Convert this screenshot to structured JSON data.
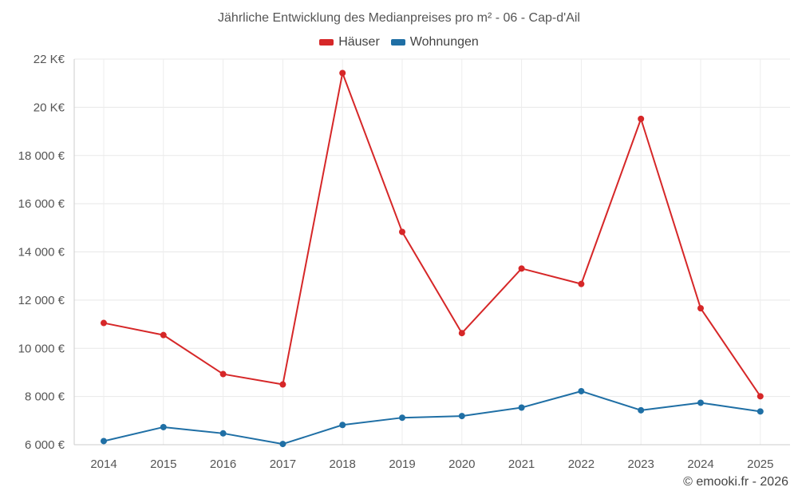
{
  "chart_data": {
    "type": "line",
    "title": "Jährliche Entwicklung des Medianpreises pro m² - 06 - Cap-d'Ail",
    "x": [
      "2014",
      "2015",
      "2016",
      "2017",
      "2018",
      "2019",
      "2020",
      "2021",
      "2022",
      "2023",
      "2024",
      "2025"
    ],
    "series": [
      {
        "name": "Häuser",
        "color": "#d62728",
        "values": [
          11050,
          10550,
          8930,
          8500,
          21420,
          14830,
          10630,
          13310,
          12670,
          19520,
          11660,
          8010
        ]
      },
      {
        "name": "Wohnungen",
        "color": "#1f6fa5",
        "values": [
          6150,
          6730,
          6470,
          6030,
          6820,
          7120,
          7190,
          7540,
          8220,
          7430,
          7740,
          7380
        ]
      }
    ],
    "ylim": [
      6000,
      22000
    ],
    "yticks": [
      6000,
      8000,
      10000,
      12000,
      14000,
      16000,
      18000,
      20000,
      22000
    ],
    "ytick_labels": [
      "6 000 €",
      "8 000 €",
      "10 000 €",
      "12 000 €",
      "14 000 €",
      "16 000 €",
      "18 000 €",
      "20 K€",
      "22 K€"
    ],
    "grid": true,
    "legend_position": "top-center",
    "xlabel": "",
    "ylabel": ""
  },
  "credit": "© emooki.fr - 2026"
}
